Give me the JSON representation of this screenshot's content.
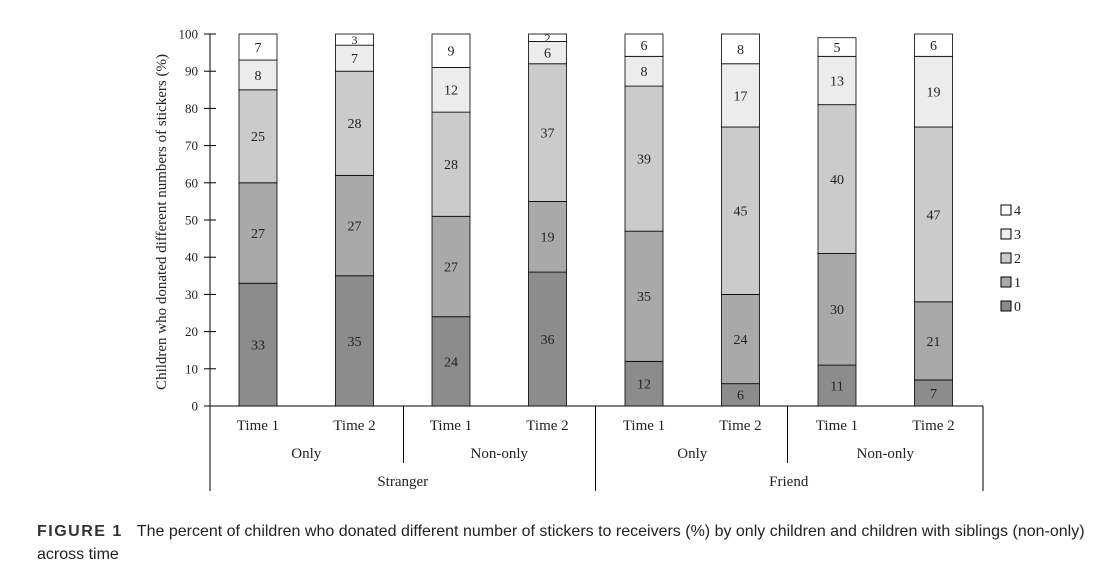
{
  "chart_data": {
    "type": "bar",
    "stacked": true,
    "ylabel": "Children who donated different numbers of stickers (%)",
    "ylim": [
      0,
      100
    ],
    "yticks": [
      "0",
      "10",
      "20",
      "30",
      "40",
      "50",
      "60",
      "70",
      "80",
      "90",
      "100"
    ],
    "categories": [
      "Time 1",
      "Time 2",
      "Time 1",
      "Time 2",
      "Time 1",
      "Time 2",
      "Time 1",
      "Time 2"
    ],
    "group_labels": [
      "Only",
      "Non-only",
      "Only",
      "Non-only"
    ],
    "outer_group_labels": [
      "Stranger",
      "Friend"
    ],
    "series": [
      {
        "name": "0",
        "color": "#8c8c8c",
        "values": [
          33,
          35,
          24,
          36,
          12,
          6,
          11,
          7
        ]
      },
      {
        "name": "1",
        "color": "#a9a9a9",
        "values": [
          27,
          27,
          27,
          19,
          35,
          24,
          30,
          21
        ]
      },
      {
        "name": "2",
        "color": "#cbcbcb",
        "values": [
          25,
          28,
          28,
          37,
          39,
          45,
          40,
          47
        ]
      },
      {
        "name": "3",
        "color": "#ececec",
        "values": [
          8,
          7,
          12,
          6,
          8,
          17,
          13,
          19
        ]
      },
      {
        "name": "4",
        "color": "#ffffff",
        "values": [
          7,
          3,
          9,
          2,
          6,
          8,
          5,
          6
        ]
      }
    ],
    "legend": {
      "position": "right",
      "order": [
        "4",
        "3",
        "2",
        "1",
        "0"
      ]
    },
    "grid": false
  },
  "caption": {
    "label": "FIGURE 1",
    "text": "The percent of children who donated different number of stickers to receivers (%) by only children and children with siblings (non-only) across time"
  }
}
